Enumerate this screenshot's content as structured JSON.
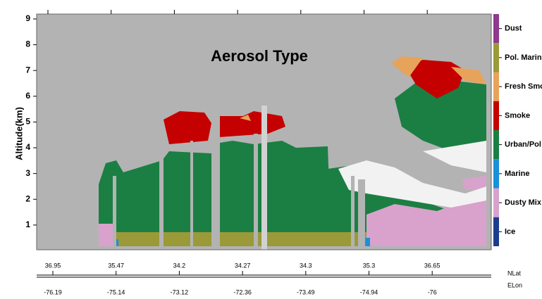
{
  "chart_data": {
    "type": "curtain",
    "title": "Aerosol Type",
    "y_label": "Altitude(km)",
    "ylim": [
      0.04,
      9.19
    ],
    "yticks": [
      1,
      2,
      3,
      4,
      5,
      6,
      7,
      8,
      9
    ],
    "x_rows": [
      {
        "name": "NLat",
        "labels": [
          36.95,
          35.47,
          34.2,
          34.27,
          34.3,
          35.3,
          36.65
        ]
      },
      {
        "name": "ELon",
        "labels": [
          -76.19,
          -75.14,
          -73.12,
          -72.36,
          -73.49,
          -74.94,
          -76
        ]
      }
    ],
    "classes": [
      {
        "name": "Dust",
        "color": "#8e3a8e"
      },
      {
        "name": "Pol. Marin",
        "color": "#9a9a38"
      },
      {
        "name": "Fresh Smo",
        "color": "#e8a35a"
      },
      {
        "name": "Smoke",
        "color": "#c40000"
      },
      {
        "name": "Urban/Pol",
        "color": "#1b7f43"
      },
      {
        "name": "Marine",
        "color": "#1a90d8"
      },
      {
        "name": "Dusty Mix",
        "color": "#d8a2cc"
      },
      {
        "name": "Ice",
        "color": "#1c3c8c"
      }
    ]
  }
}
